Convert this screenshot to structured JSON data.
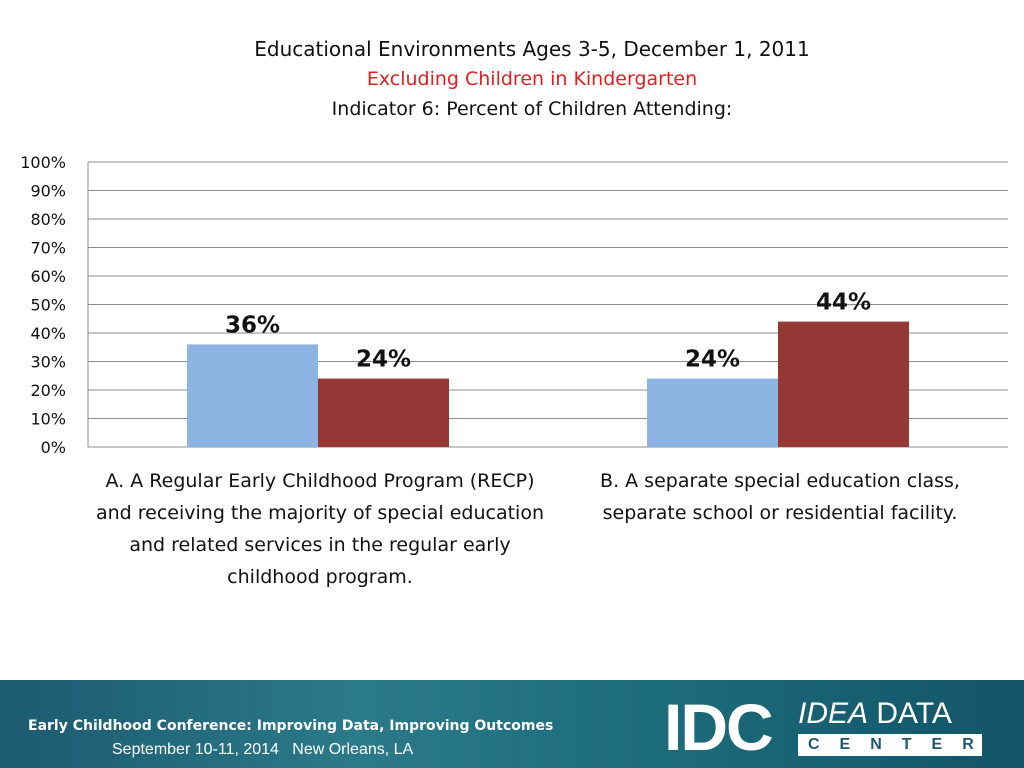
{
  "chart_data": {
    "type": "bar",
    "title": "Educational Environments Ages 3-5, December 1, 2011",
    "subtitle": "Excluding Children in Kindergarten",
    "subtitle2": "Indicator 6: Percent of Children Attending:",
    "categories": [
      "A.  A Regular Early Childhood Program (RECP) and receiving the majority of special education and related services in the regular early childhood program.",
      "B.  A separate special education class, separate school or residential facility."
    ],
    "category_lines": [
      [
        "A.  A Regular Early Childhood Program (RECP)",
        "and receiving the majority of special education",
        "and related services in the regular early",
        "childhood program."
      ],
      [
        "B.  A separate special education class,",
        "separate school or residential facility."
      ]
    ],
    "series": [
      {
        "values": [
          36,
          24
        ],
        "color": "#8db3e2"
      },
      {
        "values": [
          24,
          44
        ],
        "color": "#953735"
      }
    ],
    "data_labels": [
      [
        "36%",
        "24%"
      ],
      [
        "24%",
        "44%"
      ]
    ],
    "yticks": [
      "0%",
      "10%",
      "20%",
      "30%",
      "40%",
      "50%",
      "60%",
      "70%",
      "80%",
      "90%",
      "100%"
    ],
    "ylim": [
      0,
      100
    ],
    "grid": true,
    "legend": "none"
  },
  "footer": {
    "conference": "Early Childhood Conference: Improving Data, Improving Outcomes",
    "dates": "September 10-11, 2014   New Orleans, LA",
    "logo_idc": "IDC",
    "logo_idea": "IDEA",
    "logo_data": "DATA",
    "logo_center": "CENTER"
  }
}
